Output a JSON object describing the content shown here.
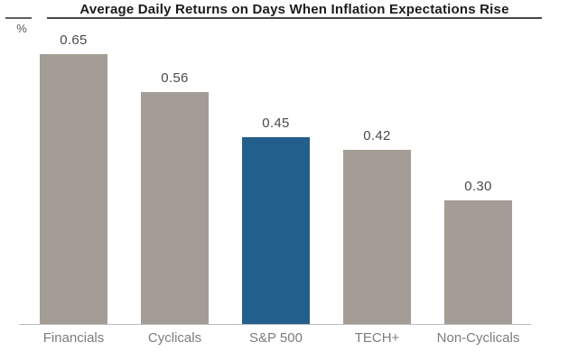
{
  "header": {
    "title": "Average Daily Returns on Days When Inflation Expectations Rise",
    "unit_label": "%"
  },
  "chart_data": {
    "type": "bar",
    "title": "Average Daily Returns on Days When Inflation Expectations Rise",
    "ylabel": "%",
    "categories": [
      "Financials",
      "Cyclicals",
      "S&P 500",
      "TECH+",
      "Non-Cyclicals"
    ],
    "values": [
      0.65,
      0.56,
      0.45,
      0.42,
      0.3
    ],
    "value_labels": [
      "0.65",
      "0.56",
      "0.45",
      "0.42",
      "0.30"
    ],
    "highlighted_category": "S&P 500",
    "bar_color": "#a49d96",
    "highlight_color": "#235f8c",
    "value_label_color": "#4a4a4a",
    "category_label_color": "#7d7d7d",
    "ylim": [
      0,
      0.78
    ],
    "grid": false,
    "legend": false,
    "data_labels": true
  }
}
